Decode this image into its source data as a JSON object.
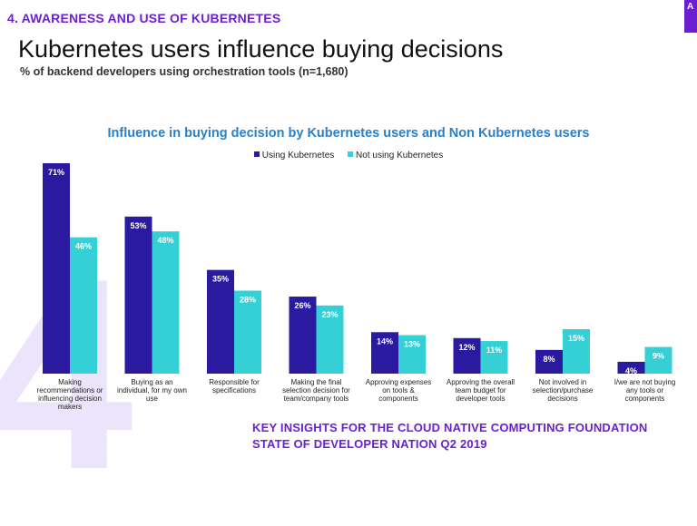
{
  "header": {
    "section_label": "4.   AWARENESS AND USE OF KUBERNETES",
    "title": "Kubernetes users influence buying decisions",
    "subtitle": "% of backend developers using orchestration tools (n=1,680)",
    "decor_number": "4"
  },
  "colors": {
    "using": "#2a1aa0",
    "not_using": "#34d0d6",
    "accent": "#6b1fd1"
  },
  "chart_data": {
    "type": "bar",
    "title": "Influence in buying decision by Kubernetes users and Non Kubernetes users",
    "xlabel": "",
    "ylabel": "",
    "ylim": [
      0,
      75
    ],
    "categories": [
      [
        "Making",
        "recommendations or",
        "influencing decision",
        "makers"
      ],
      [
        "Buying as an",
        "individual, for my own",
        "use"
      ],
      [
        "Responsible for",
        "specifications"
      ],
      [
        "Making the final",
        "selection decision for",
        "team/company tools"
      ],
      [
        "Approving expenses",
        "on tools &",
        "components"
      ],
      [
        "Approving the overall",
        "team budget for",
        "developer tools"
      ],
      [
        "Not involved in",
        "selection/purchase",
        "decisions"
      ],
      [
        "I/we are not buying",
        "any tools or",
        "components"
      ]
    ],
    "series": [
      {
        "name": "Using Kubernetes",
        "values": [
          71,
          53,
          35,
          26,
          14,
          12,
          8,
          4
        ]
      },
      {
        "name": "Not using Kubernetes",
        "values": [
          46,
          48,
          28,
          23,
          13,
          11,
          15,
          9
        ]
      }
    ],
    "legend": "top-center",
    "grid": false
  },
  "footer": {
    "line1": "KEY INSIGHTS FOR THE CLOUD NATIVE COMPUTING FOUNDATION",
    "line2": "STATE OF DEVELOPER NATION Q2 2019"
  }
}
